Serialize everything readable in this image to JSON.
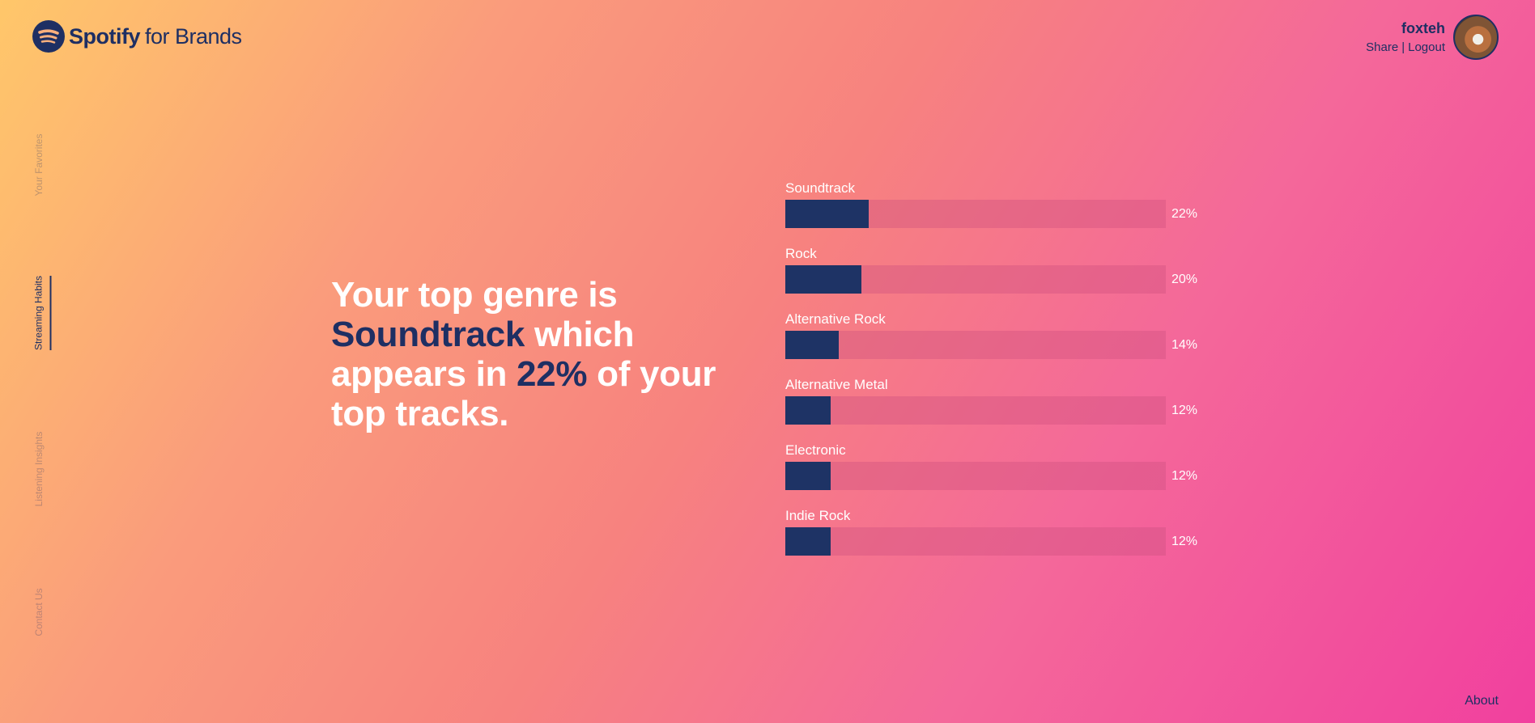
{
  "header": {
    "logo_brand": "Spotify",
    "logo_suffix": "for Brands",
    "logo_icon": "spotify-logo-icon"
  },
  "user": {
    "name": "foxteh",
    "share_label": "Share",
    "separator": "|",
    "logout_label": "Logout"
  },
  "side_nav": {
    "items": [
      {
        "label": "Your Favorites",
        "active": false
      },
      {
        "label": "Streaming Habits",
        "active": true
      },
      {
        "label": "Listening Insights",
        "active": false
      },
      {
        "label": "Contact Us",
        "active": false
      }
    ]
  },
  "headline": {
    "part1": "Your top genre is ",
    "genre": "Soundtrack",
    "part2": " which appears in ",
    "percent": "22%",
    "part3": " of your top tracks."
  },
  "chart_data": {
    "type": "bar",
    "categories": [
      "Soundtrack",
      "Rock",
      "Alternative Rock",
      "Alternative Metal",
      "Electronic",
      "Indie Rock"
    ],
    "values": [
      22,
      20,
      14,
      12,
      12,
      12
    ],
    "labels": [
      "22%",
      "20%",
      "14%",
      "12%",
      "12%",
      "12%"
    ],
    "ylim": [
      0,
      100
    ],
    "colors": {
      "fill": "#1e3365",
      "track": "#cd507d"
    }
  },
  "footer": {
    "about_label": "About"
  }
}
